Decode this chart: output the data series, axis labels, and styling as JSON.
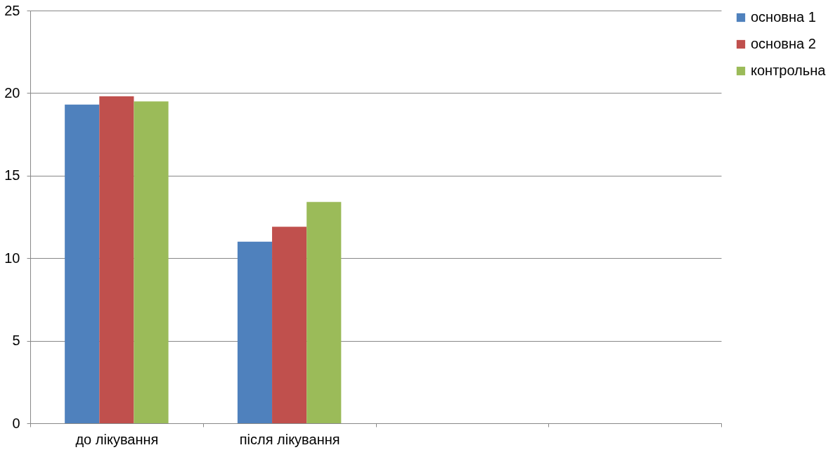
{
  "chart_data": {
    "type": "bar",
    "categories": [
      "до лікування",
      "після лікування",
      null,
      null
    ],
    "series": [
      {
        "name": "основна 1",
        "color": "#4f81bd",
        "values": [
          19.3,
          11.0,
          null,
          null
        ]
      },
      {
        "name": "основна 2",
        "color": "#c0504d",
        "values": [
          19.8,
          11.9,
          null,
          null
        ]
      },
      {
        "name": "контрольна",
        "color": "#9bbb59",
        "values": [
          19.5,
          13.4,
          null,
          null
        ]
      }
    ],
    "ylim": [
      0,
      25
    ],
    "yticks": [
      0,
      5,
      10,
      15,
      20,
      25
    ],
    "grid": "y",
    "legend": "right"
  }
}
